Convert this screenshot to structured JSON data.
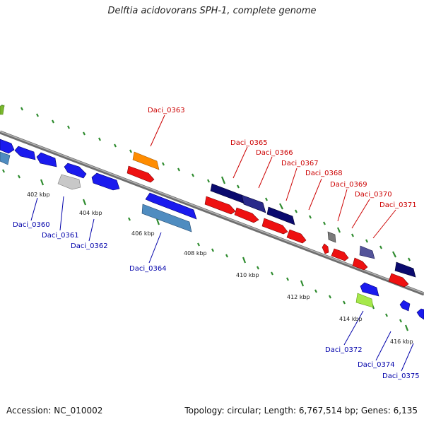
{
  "title": "Delftia acidovorans SPH-1, complete genome",
  "accession_text": "Accession: NC_010002",
  "summary_text": "Topology: circular; Length: 6,767,514 bp; Genes: 6,135",
  "colors": {
    "forward_label": "#cc0000",
    "reverse_label": "#0000aa",
    "backbone": "#8a8a8a",
    "tick": "#2e8b2e"
  },
  "scale_labels": [
    "402 kbp",
    "404 kbp",
    "406 kbp",
    "408 kbp",
    "410 kbp",
    "412 kbp",
    "414 kbp",
    "416 kbp"
  ],
  "forward_gene_labels": [
    "Daci_0363",
    "Daci_0365",
    "Daci_0366",
    "Daci_0367",
    "Daci_0368",
    "Daci_0369",
    "Daci_0370",
    "Daci_0371"
  ],
  "reverse_gene_labels": [
    "Daci_0360",
    "Daci_0361",
    "Daci_0362",
    "Daci_0364",
    "Daci_0372",
    "Daci_0374",
    "Daci_0375"
  ]
}
